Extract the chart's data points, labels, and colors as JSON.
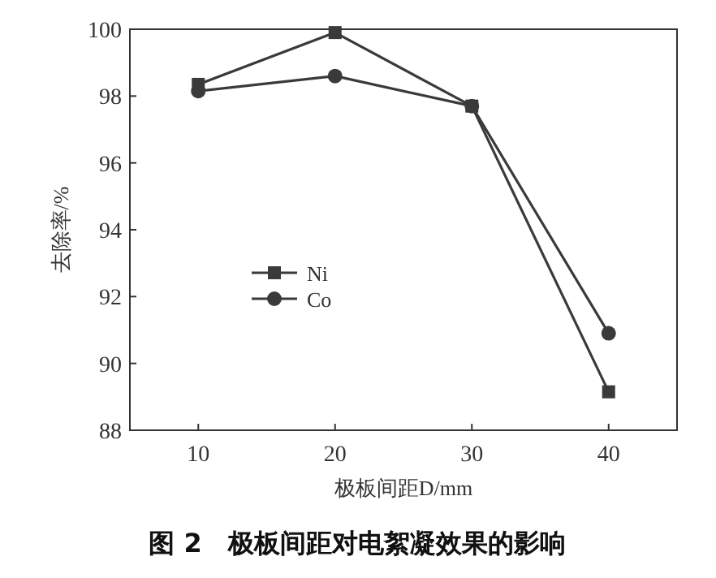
{
  "chart_data": {
    "type": "line",
    "title": "图 2　极板间距对电絮凝效果的影响",
    "xlabel": "极板间距D/mm",
    "ylabel": "去除率/%",
    "x": [
      10,
      20,
      30,
      40
    ],
    "series": [
      {
        "name": "Ni",
        "color": "#3a3a3a",
        "marker": "square",
        "values": [
          98.35,
          99.9,
          97.7,
          89.15
        ]
      },
      {
        "name": "Co",
        "color": "#3a3a3a",
        "marker": "circle",
        "values": [
          98.15,
          98.6,
          97.7,
          90.9
        ]
      }
    ],
    "xlim": [
      5,
      45
    ],
    "xticks": [
      10,
      20,
      30,
      40
    ],
    "ylim": [
      88,
      100
    ],
    "yticks": [
      88,
      90,
      92,
      94,
      96,
      98,
      100
    ],
    "grid": false,
    "legend": "left",
    "line_style": "solid"
  }
}
